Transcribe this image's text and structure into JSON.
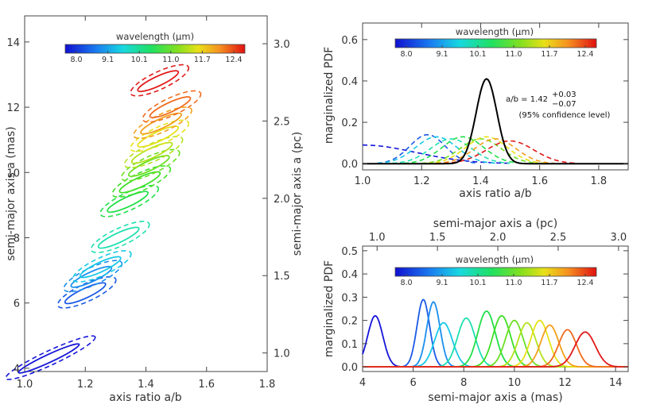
{
  "colorbar": {
    "title": "wavelength (μm)",
    "ticks": [
      "8.0",
      "9.1",
      "10.1",
      "11.0",
      "11.7",
      "12.4"
    ]
  },
  "chart_data": [
    {
      "id": "left",
      "type": "scatter",
      "description_kind": "confidence contours of axis ratio vs semi-major axis per wavelength",
      "xlabel": "axis ratio a/b",
      "ylabel": "semi-major axis a (mas)",
      "ylabel_right": "semi-major axis a (pc)",
      "xlim": [
        1.0,
        1.8
      ],
      "ylim": [
        3.9,
        14.8
      ],
      "xticks": [
        "1.0",
        "1.2",
        "1.4",
        "1.6",
        "1.8"
      ],
      "yticks": [
        "4",
        "6",
        "8",
        "10",
        "12",
        "14"
      ],
      "yticks_right": [
        "1.0",
        "1.5",
        "2.0",
        "2.5",
        "3.0"
      ],
      "right_axis_range_pc": [
        0.88,
        3.18
      ],
      "series": [
        {
          "wavelength": 8.0,
          "color": "#1515d8",
          "cx": 1.08,
          "cy": 4.3
        },
        {
          "wavelength": 8.8,
          "color": "#1b5ae6",
          "cx": 1.2,
          "cy": 6.3
        },
        {
          "wavelength": 9.1,
          "color": "#1a8fee",
          "cx": 1.22,
          "cy": 6.8
        },
        {
          "wavelength": 9.4,
          "color": "#18c8e6",
          "cx": 1.25,
          "cy": 7.1
        },
        {
          "wavelength": 9.8,
          "color": "#1fe0b0",
          "cx": 1.31,
          "cy": 8.0
        },
        {
          "wavelength": 10.1,
          "color": "#21df48",
          "cx": 1.34,
          "cy": 9.1
        },
        {
          "wavelength": 10.4,
          "color": "#3ee026",
          "cx": 1.38,
          "cy": 9.7
        },
        {
          "wavelength": 10.7,
          "color": "#6ce024",
          "cx": 1.41,
          "cy": 10.2
        },
        {
          "wavelength": 11.0,
          "color": "#b3e21e",
          "cx": 1.42,
          "cy": 10.6
        },
        {
          "wavelength": 11.2,
          "color": "#e6e218",
          "cx": 1.44,
          "cy": 11.1
        },
        {
          "wavelength": 11.7,
          "color": "#f39f1c",
          "cx": 1.45,
          "cy": 11.5
        },
        {
          "wavelength": 12.1,
          "color": "#f06b1e",
          "cx": 1.48,
          "cy": 12.0
        },
        {
          "wavelength": 12.4,
          "color": "#e11b1b",
          "cx": 1.44,
          "cy": 12.8
        }
      ]
    },
    {
      "id": "top-right",
      "type": "line",
      "xlabel": "axis ratio a/b",
      "ylabel": "marginalized PDF",
      "xlim": [
        1.0,
        1.9
      ],
      "ylim": [
        -0.03,
        0.68
      ],
      "xticks": [
        "1.0",
        "1.2",
        "1.4",
        "1.6",
        "1.8"
      ],
      "yticks": [
        "0.0",
        "0.2",
        "0.4",
        "0.6"
      ],
      "annotation": {
        "main": "a/b = 1.42",
        "plus": "+0.03",
        "minus": "−0.07",
        "note": "(95% confidence level)"
      },
      "series": [
        {
          "color": "#1515d8",
          "dashed": true,
          "peak_x": 1.0,
          "peak": 0.09,
          "width": 0.18
        },
        {
          "color": "#1b5ae6",
          "dashed": true,
          "peak_x": 1.22,
          "peak": 0.14,
          "width": 0.06
        },
        {
          "color": "#18c8e6",
          "dashed": true,
          "peak_x": 1.25,
          "peak": 0.13,
          "width": 0.07
        },
        {
          "color": "#1fe0b0",
          "dashed": true,
          "peak_x": 1.3,
          "peak": 0.12,
          "width": 0.07
        },
        {
          "color": "#21df48",
          "dashed": true,
          "peak_x": 1.34,
          "peak": 0.13,
          "width": 0.07
        },
        {
          "color": "#6ce024",
          "dashed": true,
          "peak_x": 1.4,
          "peak": 0.12,
          "width": 0.07
        },
        {
          "color": "#e6e218",
          "dashed": true,
          "peak_x": 1.42,
          "peak": 0.13,
          "width": 0.07
        },
        {
          "color": "#f39f1c",
          "dashed": true,
          "peak_x": 1.45,
          "peak": 0.12,
          "width": 0.07
        },
        {
          "color": "#e11b1b",
          "dashed": true,
          "peak_x": 1.5,
          "peak": 0.11,
          "width": 0.08
        },
        {
          "color": "#000000",
          "dashed": false,
          "peak_x": 1.42,
          "peak": 0.41,
          "width": 0.035
        }
      ]
    },
    {
      "id": "bottom-right",
      "type": "line",
      "xlabel": "semi-major axis a (mas)",
      "xlabel_top": "semi-major axis a (pc)",
      "ylabel": "marginalized PDF",
      "xlim": [
        4.0,
        14.5
      ],
      "ylim": [
        -0.02,
        0.52
      ],
      "xticks": [
        "4",
        "6",
        "8",
        "10",
        "12",
        "14"
      ],
      "xticks_top": [
        "1.0",
        "1.5",
        "2.0",
        "2.5",
        "3.0"
      ],
      "yticks": [
        "0.0",
        "0.1",
        "0.2",
        "0.3",
        "0.4",
        "0.5"
      ],
      "series": [
        {
          "color": "#1515d8",
          "peak_x": 4.5,
          "peak": 0.22,
          "width": 0.3
        },
        {
          "color": "#1b5ae6",
          "peak_x": 6.4,
          "peak": 0.29,
          "width": 0.25
        },
        {
          "color": "#1a8fee",
          "peak_x": 6.8,
          "peak": 0.28,
          "width": 0.26
        },
        {
          "color": "#18c8e6",
          "peak_x": 7.2,
          "peak": 0.19,
          "width": 0.35
        },
        {
          "color": "#1fe0b0",
          "peak_x": 8.1,
          "peak": 0.21,
          "width": 0.35
        },
        {
          "color": "#21df48",
          "peak_x": 8.9,
          "peak": 0.24,
          "width": 0.35
        },
        {
          "color": "#3ee026",
          "peak_x": 9.5,
          "peak": 0.22,
          "width": 0.35
        },
        {
          "color": "#6ce024",
          "peak_x": 10.0,
          "peak": 0.2,
          "width": 0.35
        },
        {
          "color": "#b3e21e",
          "peak_x": 10.5,
          "peak": 0.19,
          "width": 0.35
        },
        {
          "color": "#e6e218",
          "peak_x": 11.0,
          "peak": 0.2,
          "width": 0.35
        },
        {
          "color": "#f39f1c",
          "peak_x": 11.4,
          "peak": 0.18,
          "width": 0.35
        },
        {
          "color": "#f06b1e",
          "peak_x": 12.1,
          "peak": 0.16,
          "width": 0.35
        },
        {
          "color": "#e11b1b",
          "peak_x": 12.8,
          "peak": 0.15,
          "width": 0.4
        }
      ]
    }
  ]
}
